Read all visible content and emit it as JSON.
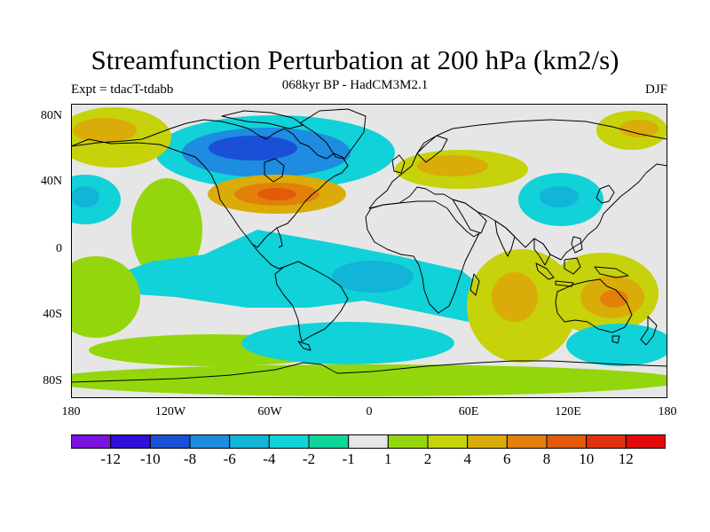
{
  "title": "Streamfunction Perturbation at 200 hPa (km2/s)",
  "subtitle": "068kyr BP - HadCM3M2.1",
  "experiment": "Expt = tdacT-tdabb",
  "season": "DJF",
  "map": {
    "lat_ticks": [
      "80N",
      "40N",
      "0",
      "40S",
      "80S"
    ],
    "lon_ticks": [
      "180",
      "120W",
      "60W",
      "0",
      "60E",
      "120E",
      "180"
    ],
    "background_color": "#e6e6e6",
    "coastline_color": "#000000"
  },
  "colorbar": {
    "colors": [
      "#7a12e0",
      "#3010d8",
      "#1a50d8",
      "#1e8ce0",
      "#12b4d8",
      "#10d2d8",
      "#0ed69a",
      "#e6e6e6",
      "#94d60c",
      "#c6d20a",
      "#daac0a",
      "#e2800a",
      "#e25a0a",
      "#e0320e",
      "#e20a0a"
    ],
    "labels": [
      "-12",
      "-10",
      "-8",
      "-6",
      "-4",
      "-2",
      "-1",
      "1",
      "2",
      "4",
      "6",
      "8",
      "10",
      "12"
    ]
  },
  "field_regions": [
    {
      "name": "arctic-atlantic-trough",
      "level": 5
    },
    {
      "name": "north-america-low",
      "level": 3
    },
    {
      "name": "north-america-core",
      "level": 2
    },
    {
      "name": "atlantic-ridge",
      "level": 10
    },
    {
      "name": "atlantic-ridge-core",
      "level": 11
    },
    {
      "name": "atlantic-ridge-center",
      "level": 12
    },
    {
      "name": "central-pacific-ridge",
      "level": 8
    },
    {
      "name": "alaska-ridge",
      "level": 9
    },
    {
      "name": "alaska-ridge-core",
      "level": 10
    },
    {
      "name": "far-east-ridge",
      "level": 9
    },
    {
      "name": "far-east-ridge-core",
      "level": 10
    },
    {
      "name": "europe-ridge",
      "level": 9
    },
    {
      "name": "europe-ridge-core",
      "level": 10
    },
    {
      "name": "east-asia-trough",
      "level": 5
    },
    {
      "name": "east-asia-core",
      "level": 4
    },
    {
      "name": "north-pacific-trough",
      "level": 5
    },
    {
      "name": "north-pacific-core",
      "level": 4
    },
    {
      "name": "tropical-trough",
      "level": 5
    },
    {
      "name": "south-atlantic-trough",
      "level": 4
    },
    {
      "name": "indian-ocean-ridge",
      "level": 9
    },
    {
      "name": "indian-ocean-core",
      "level": 10
    },
    {
      "name": "australia-ridge",
      "level": 9
    },
    {
      "name": "australia-core",
      "level": 10
    },
    {
      "name": "australia-center",
      "level": 11
    },
    {
      "name": "south-indian-trough",
      "level": 5
    },
    {
      "name": "south-pacific-ridge",
      "level": 8
    },
    {
      "name": "southern-ocean-ridge",
      "level": 8
    },
    {
      "name": "southern-ocean-trough",
      "level": 5
    },
    {
      "name": "antarctic-ridge",
      "level": 8
    }
  ]
}
